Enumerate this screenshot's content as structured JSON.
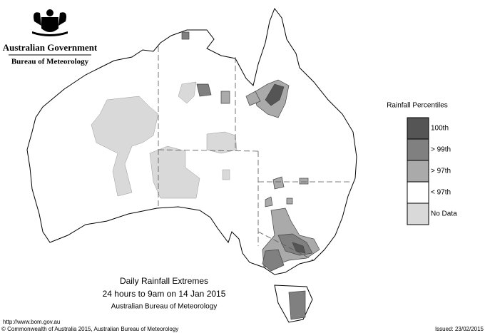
{
  "header": {
    "government": "Australian Government",
    "agency": "Bureau of Meteorology"
  },
  "legend": {
    "title": "Rainfall Percentiles",
    "items": [
      {
        "label": "100th",
        "color": "#555555"
      },
      {
        "label": "> 99th",
        "color": "#808080"
      },
      {
        "label": "> 97th",
        "color": "#aaaaaa"
      },
      {
        "label": "< 97th",
        "color": "#ffffff"
      },
      {
        "label": "No Data",
        "color": "#d9d9d9"
      }
    ]
  },
  "caption": {
    "title": "Daily Rainfall Extremes",
    "period": "24 hours to 9am on 14 Jan 2015",
    "source": "Australian Bureau of Meteorology"
  },
  "footer": {
    "url": "http://www.bom.gov.au",
    "copyright": "© Commonwealth of Australia 2015, Australian Bureau of Meteorology",
    "issued": "Issued: 23/02/2015"
  }
}
